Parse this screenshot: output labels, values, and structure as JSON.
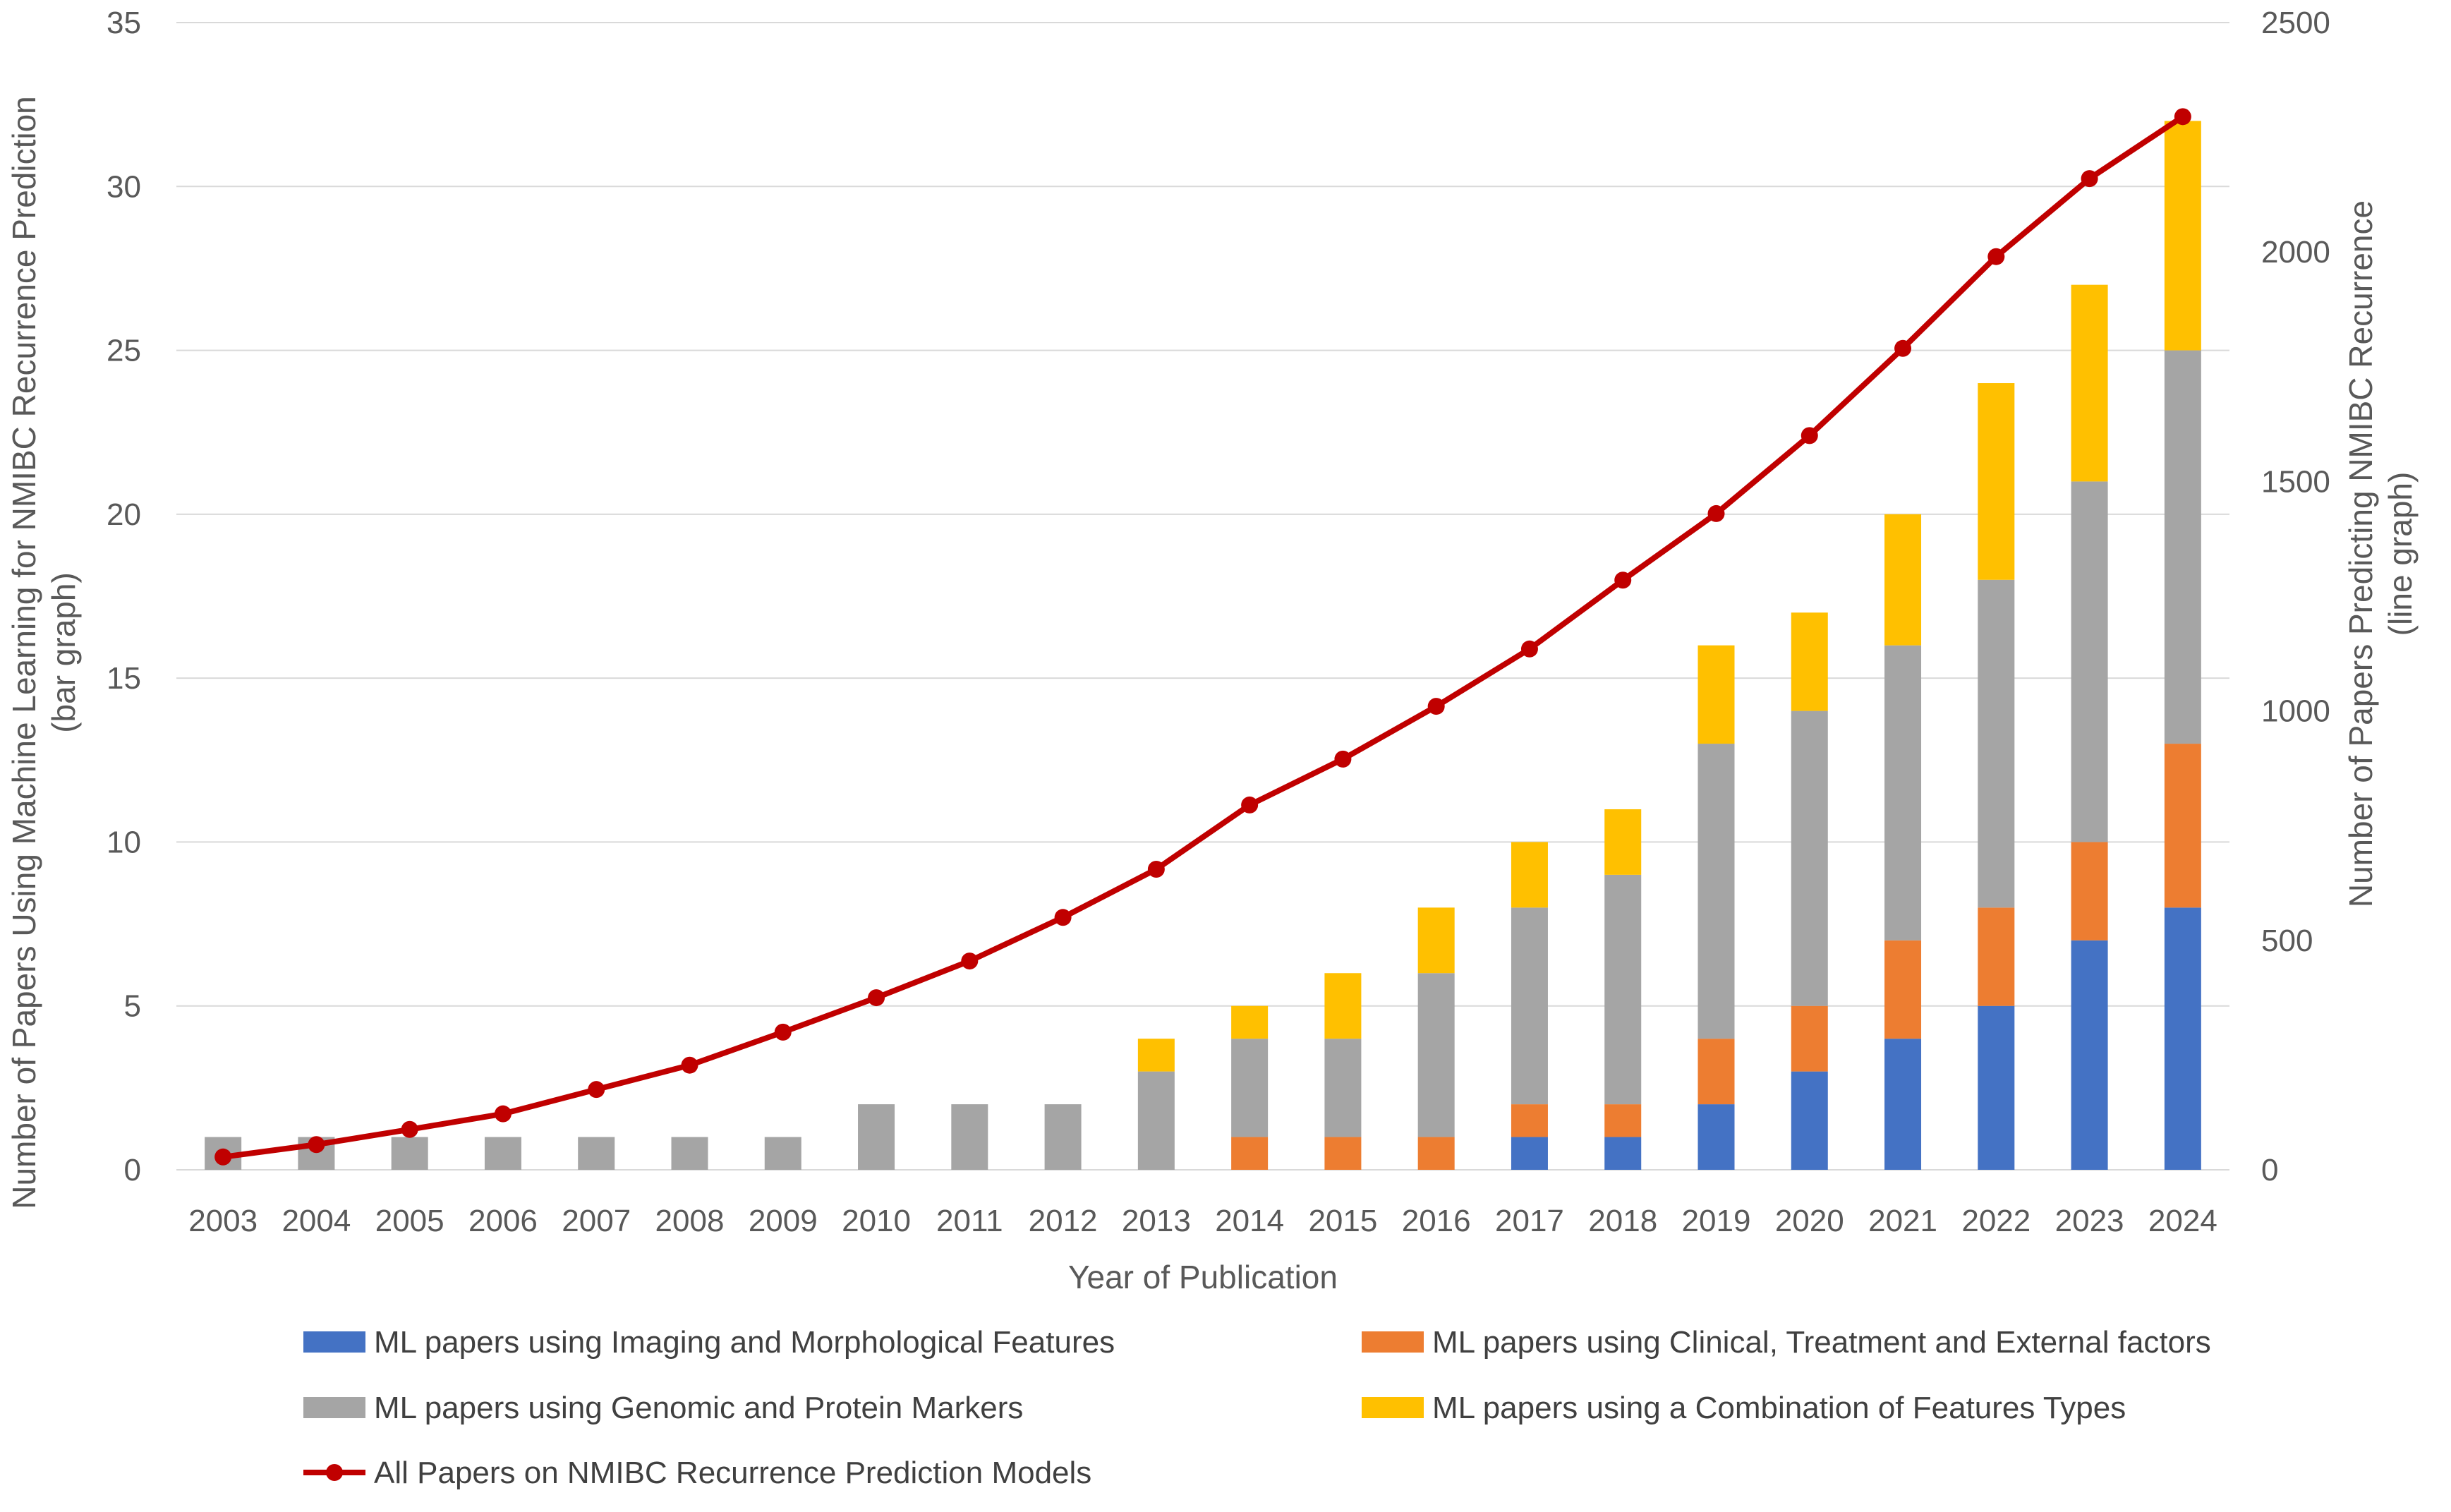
{
  "chart_data": {
    "type": "bar",
    "stacked": true,
    "title": "",
    "xlabel": "Year of Publication",
    "ylabel_left": [
      "Number of Papers Using Machine Learning for NMIBC Recurrence Prediction",
      "(bar graph)"
    ],
    "ylabel_right": [
      "Number of Papers Predicting NMIBC Recurrence",
      "(line graph)"
    ],
    "categories": [
      "2003",
      "2004",
      "2005",
      "2006",
      "2007",
      "2008",
      "2009",
      "2010",
      "2011",
      "2012",
      "2013",
      "2014",
      "2015",
      "2016",
      "2017",
      "2018",
      "2019",
      "2020",
      "2021",
      "2022",
      "2023",
      "2024"
    ],
    "ylim_left": [
      0,
      35
    ],
    "yticks_left": [
      0,
      5,
      10,
      15,
      20,
      25,
      30,
      35
    ],
    "ylim_right": [
      0,
      2500
    ],
    "yticks_right": [
      0,
      500,
      1000,
      1500,
      2000,
      2500
    ],
    "grid": true,
    "legend_position": "bottom",
    "series": [
      {
        "name": "ML papers using Imaging and Morphological Features",
        "axis": "left",
        "kind": "bar",
        "color": "#4472C4",
        "values": [
          0,
          0,
          0,
          0,
          0,
          0,
          0,
          0,
          0,
          0,
          0,
          0,
          0,
          0,
          1,
          1,
          2,
          3,
          4,
          5,
          7,
          8
        ]
      },
      {
        "name": "ML papers using Clinical, Treatment and External factors",
        "axis": "left",
        "kind": "bar",
        "color": "#ED7D31",
        "values": [
          0,
          0,
          0,
          0,
          0,
          0,
          0,
          0,
          0,
          0,
          0,
          1,
          1,
          1,
          1,
          1,
          2,
          2,
          3,
          3,
          3,
          5
        ]
      },
      {
        "name": "ML papers using Genomic and Protein Markers",
        "axis": "left",
        "kind": "bar",
        "color": "#A5A5A5",
        "values": [
          1,
          1,
          1,
          1,
          1,
          1,
          1,
          2,
          2,
          2,
          3,
          3,
          3,
          5,
          6,
          7,
          9,
          9,
          9,
          10,
          11,
          12
        ]
      },
      {
        "name": "ML papers using a Combination of Features Types",
        "axis": "left",
        "kind": "bar",
        "color": "#FFC000",
        "values": [
          0,
          0,
          0,
          0,
          0,
          0,
          0,
          0,
          0,
          0,
          1,
          1,
          2,
          2,
          2,
          2,
          3,
          3,
          4,
          6,
          6,
          7
        ]
      },
      {
        "name": "All Papers on NMIBC Recurrence Prediction Models",
        "axis": "right",
        "kind": "line",
        "color": "#C00000",
        "values": [
          28,
          55,
          88,
          122,
          175,
          228,
          300,
          375,
          455,
          550,
          655,
          795,
          895,
          1010,
          1135,
          1285,
          1430,
          1600,
          1790,
          1990,
          2160,
          2295
        ]
      }
    ],
    "legend_order": [
      0,
      1,
      2,
      3,
      4
    ]
  }
}
